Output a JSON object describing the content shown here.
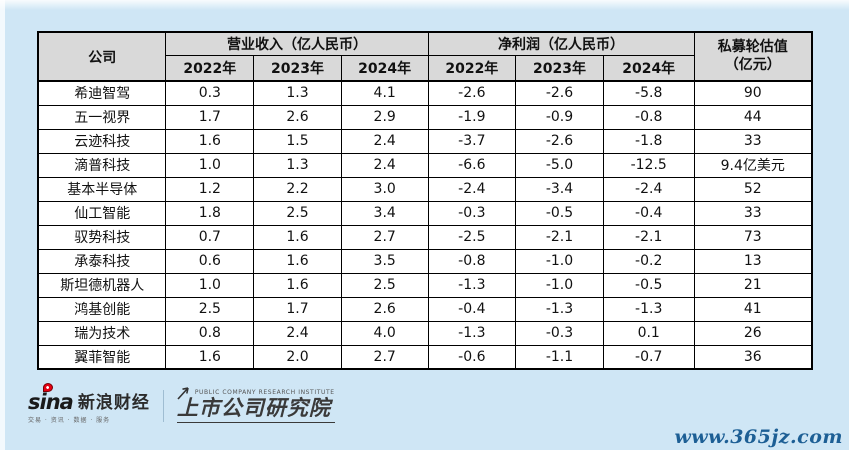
{
  "page": {
    "background_color": "#cfe6f5",
    "watermark": "www.365jz.com"
  },
  "chart_data": {
    "type": "table",
    "header": {
      "company": "公司",
      "revenue_group": "营业收入（亿人民币）",
      "profit_group": "净利润（亿人民币）",
      "valuation_line1": "私募轮估值",
      "valuation_line2": "（亿元）",
      "years": [
        "2022年",
        "2023年",
        "2024年"
      ]
    },
    "rows": [
      {
        "company": "希迪智驾",
        "revenue": [
          "0.3",
          "1.3",
          "4.1"
        ],
        "profit": [
          "-2.6",
          "-2.6",
          "-5.8"
        ],
        "valuation": "90"
      },
      {
        "company": "五一视界",
        "revenue": [
          "1.7",
          "2.6",
          "2.9"
        ],
        "profit": [
          "-1.9",
          "-0.9",
          "-0.8"
        ],
        "valuation": "44"
      },
      {
        "company": "云迹科技",
        "revenue": [
          "1.6",
          "1.5",
          "2.4"
        ],
        "profit": [
          "-3.7",
          "-2.6",
          "-1.8"
        ],
        "valuation": "33"
      },
      {
        "company": "滴普科技",
        "revenue": [
          "1.0",
          "1.3",
          "2.4"
        ],
        "profit": [
          "-6.6",
          "-5.0",
          "-12.5"
        ],
        "valuation": "9.4亿美元"
      },
      {
        "company": "基本半导体",
        "revenue": [
          "1.2",
          "2.2",
          "3.0"
        ],
        "profit": [
          "-2.4",
          "-3.4",
          "-2.4"
        ],
        "valuation": "52"
      },
      {
        "company": "仙工智能",
        "revenue": [
          "1.8",
          "2.5",
          "3.4"
        ],
        "profit": [
          "-0.3",
          "-0.5",
          "-0.4"
        ],
        "valuation": "33"
      },
      {
        "company": "驭势科技",
        "revenue": [
          "0.7",
          "1.6",
          "2.7"
        ],
        "profit": [
          "-2.5",
          "-2.1",
          "-2.1"
        ],
        "valuation": "73"
      },
      {
        "company": "承泰科技",
        "revenue": [
          "0.6",
          "1.6",
          "3.5"
        ],
        "profit": [
          "-0.8",
          "-1.0",
          "-0.2"
        ],
        "valuation": "13"
      },
      {
        "company": "斯坦德机器人",
        "revenue": [
          "1.0",
          "1.6",
          "2.5"
        ],
        "profit": [
          "-1.3",
          "-1.0",
          "-0.5"
        ],
        "valuation": "21"
      },
      {
        "company": "鸿基创能",
        "revenue": [
          "2.5",
          "1.7",
          "2.6"
        ],
        "profit": [
          "-0.4",
          "-1.3",
          "-1.3"
        ],
        "valuation": "41"
      },
      {
        "company": "瑞为技术",
        "revenue": [
          "0.8",
          "2.4",
          "4.0"
        ],
        "profit": [
          "-1.3",
          "-0.3",
          "0.1"
        ],
        "valuation": "26"
      },
      {
        "company": "翼菲智能",
        "revenue": [
          "1.6",
          "2.0",
          "2.7"
        ],
        "profit": [
          "-0.6",
          "-1.1",
          "-0.7"
        ],
        "valuation": "36"
      }
    ]
  },
  "footer": {
    "sina_word": "sina",
    "sina_brand": "新浪财经",
    "sina_tagline": "交易 · 资讯 · 数据 · 服务",
    "institute_en": "PUBLIC COMPANY RESEARCH INSTITUTE",
    "institute_cn": "上市公司研究院"
  }
}
